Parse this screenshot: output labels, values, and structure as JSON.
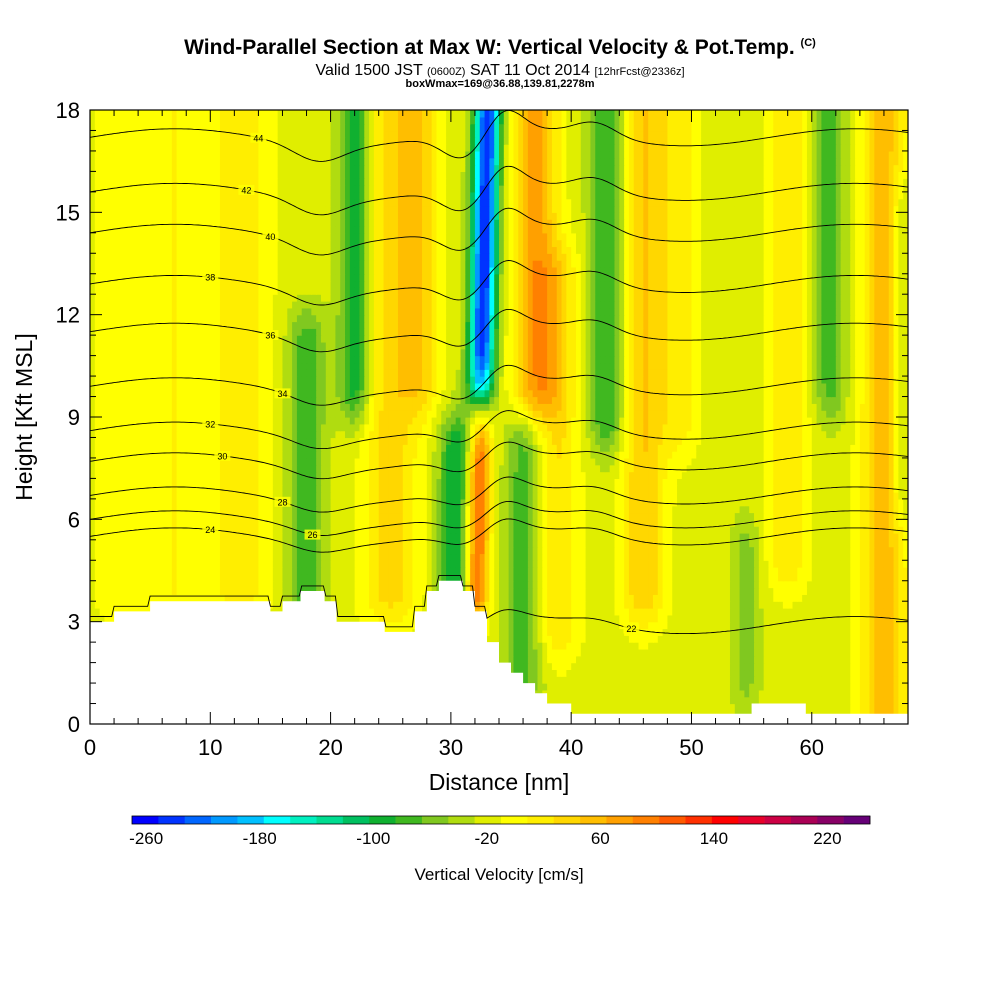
{
  "chart_data": {
    "type": "heatmap",
    "title": "Wind-Parallel Section at Max W: Vertical Velocity & Pot.Temp.",
    "title_tag": "(C)",
    "subtitle_pre": "Valid 1500 JST",
    "subtitle_small1": "(0600Z)",
    "subtitle_mid": "SAT 11 Oct 2014",
    "subtitle_small2": "[12hrFcst@2336z]",
    "subtitle2": "boxWmax=169@36.88,139.81,2278m",
    "xlabel": "Distance [nm]",
    "ylabel": "Height [Kft MSL]",
    "xlim": [
      0,
      68
    ],
    "ylim": [
      0,
      18
    ],
    "x_ticks": [
      0,
      10,
      20,
      30,
      40,
      50,
      60
    ],
    "x_tick_labels": [
      "0",
      "10",
      "20",
      "30",
      "40",
      "50",
      "60"
    ],
    "y_ticks": [
      0,
      3,
      6,
      9,
      12,
      15,
      18
    ],
    "y_tick_labels": [
      "0",
      "3",
      "6",
      "9",
      "12",
      "15",
      "18"
    ],
    "colorbar": {
      "title": "Vertical Velocity [cm/s]",
      "min": -270,
      "max": 250,
      "step": 20,
      "tick_labels": [
        "-260",
        "-180",
        "-100",
        "-20",
        "60",
        "140",
        "220"
      ],
      "tick_values": [
        -260,
        -180,
        -100,
        -20,
        60,
        140,
        220
      ],
      "colors": [
        "#0000ff",
        "#0033ff",
        "#0066ff",
        "#0099ff",
        "#00c0ff",
        "#00ffff",
        "#00f0c0",
        "#00dc90",
        "#00c060",
        "#10b030",
        "#40b820",
        "#80c820",
        "#b0dc10",
        "#e0ee00",
        "#ffff00",
        "#ffee00",
        "#ffd700",
        "#ffbe00",
        "#ffa000",
        "#ff8000",
        "#ff5a00",
        "#ff3000",
        "#ff0000",
        "#e8002a",
        "#cc0044",
        "#aa0055",
        "#880066",
        "#660077"
      ]
    },
    "vertical_velocity_bands": [
      {
        "x": 2,
        "width": 2.5,
        "peak": 20,
        "ymin": 4,
        "ymax": 18
      },
      {
        "x": 7,
        "width": 3,
        "peak": 30,
        "ymin": 4,
        "ymax": 18
      },
      {
        "x": 12.5,
        "width": 3,
        "peak": 40,
        "ymin": 4,
        "ymax": 18
      },
      {
        "x": 18,
        "width": 1.8,
        "peak": -70,
        "ymin": 2.5,
        "ymax": 11
      },
      {
        "x": 22,
        "width": 1.6,
        "peak": -90,
        "ymin": 10,
        "ymax": 18
      },
      {
        "x": 25,
        "width": 2.8,
        "peak": 60,
        "ymin": 4,
        "ymax": 18
      },
      {
        "x": 27.5,
        "width": 2,
        "peak": 50,
        "ymin": 10,
        "ymax": 18
      },
      {
        "x": 30.5,
        "width": 1.8,
        "peak": -90,
        "ymin": 3.5,
        "ymax": 8
      },
      {
        "x": 32.5,
        "width": 1.3,
        "peak": -250,
        "ymin": 10,
        "ymax": 18
      },
      {
        "x": 32.5,
        "width": 1.2,
        "peak": 150,
        "ymin": 4,
        "ymax": 9
      },
      {
        "x": 37,
        "width": 2.2,
        "peak": 100,
        "ymin": 10,
        "ymax": 18
      },
      {
        "x": 36,
        "width": 1.8,
        "peak": -60,
        "ymin": 1.5,
        "ymax": 8
      },
      {
        "x": 39,
        "width": 2,
        "peak": 50,
        "ymin": 3,
        "ymax": 13
      },
      {
        "x": 43,
        "width": 1.8,
        "peak": -70,
        "ymin": 9,
        "ymax": 18
      },
      {
        "x": 46,
        "width": 2.2,
        "peak": 70,
        "ymin": 4,
        "ymax": 18
      },
      {
        "x": 49,
        "width": 2,
        "peak": 40,
        "ymin": 9,
        "ymax": 18
      },
      {
        "x": 54.5,
        "width": 1.4,
        "peak": -40,
        "ymin": 1.5,
        "ymax": 5
      },
      {
        "x": 58,
        "width": 2,
        "peak": 50,
        "ymin": 5,
        "ymax": 18
      },
      {
        "x": 61.5,
        "width": 1.6,
        "peak": -60,
        "ymin": 10,
        "ymax": 18
      },
      {
        "x": 66,
        "width": 2.2,
        "peak": 80,
        "ymin": 0,
        "ymax": 18
      },
      {
        "x": 67.5,
        "width": 1.2,
        "peak": -40,
        "ymin": 7,
        "ymax": 15
      }
    ],
    "terrain": [
      [
        0,
        3
      ],
      [
        2,
        3
      ],
      [
        2,
        3.3
      ],
      [
        5,
        3.3
      ],
      [
        5,
        3.6
      ],
      [
        15,
        3.6
      ],
      [
        15,
        3.3
      ],
      [
        16,
        3.3
      ],
      [
        16,
        3.6
      ],
      [
        17.5,
        3.6
      ],
      [
        17.5,
        3.9
      ],
      [
        19.5,
        3.9
      ],
      [
        19.5,
        3.6
      ],
      [
        20.5,
        3.6
      ],
      [
        20.5,
        3
      ],
      [
        24.5,
        3
      ],
      [
        24.5,
        2.7
      ],
      [
        27,
        2.7
      ],
      [
        27,
        3.3
      ],
      [
        28,
        3.3
      ],
      [
        28,
        3.9
      ],
      [
        29,
        3.9
      ],
      [
        29,
        4.2
      ],
      [
        31,
        4.2
      ],
      [
        31,
        3.9
      ],
      [
        32,
        3.9
      ],
      [
        32,
        3.3
      ],
      [
        33,
        3.3
      ],
      [
        33,
        2.4
      ],
      [
        34,
        2.4
      ],
      [
        34,
        1.8
      ],
      [
        35,
        1.8
      ],
      [
        35,
        1.5
      ],
      [
        36,
        1.5
      ],
      [
        36,
        1.2
      ],
      [
        37,
        1.2
      ],
      [
        37,
        0.9
      ],
      [
        38,
        0.9
      ],
      [
        38,
        0.6
      ],
      [
        40,
        0.6
      ],
      [
        40,
        0.3
      ],
      [
        55,
        0.3
      ],
      [
        55,
        0.6
      ],
      [
        59.5,
        0.6
      ],
      [
        59.5,
        0.3
      ],
      [
        68,
        0.3
      ],
      [
        68,
        0
      ],
      [
        0,
        0
      ]
    ],
    "theta_contours": [
      {
        "value": 22,
        "base": 2.9,
        "label": "22",
        "label_x": 45
      },
      {
        "value": 24,
        "base": 5.5,
        "label": "24",
        "label_x": 10
      },
      {
        "value": 26,
        "base": 6.0,
        "label": "26",
        "label_x": 18.5
      },
      {
        "value": 28,
        "base": 6.7,
        "label": "28",
        "label_x": 16
      },
      {
        "value": 30,
        "base": 7.7,
        "label": "30",
        "label_x": 11
      },
      {
        "value": 32,
        "base": 8.6,
        "label": "32",
        "label_x": 10
      },
      {
        "value": 34,
        "base": 9.9,
        "label": "34",
        "label_x": 16
      },
      {
        "value": 36,
        "base": 11.5,
        "label": "36",
        "label_x": 15
      },
      {
        "value": 38,
        "base": 12.9,
        "label": "38",
        "label_x": 10
      },
      {
        "value": 40,
        "base": 14.4,
        "label": "40",
        "label_x": 15
      },
      {
        "value": 42,
        "base": 15.6,
        "label": "42",
        "label_x": 13
      },
      {
        "value": 44,
        "base": 17.2,
        "label": "44",
        "label_x": 14
      }
    ]
  }
}
